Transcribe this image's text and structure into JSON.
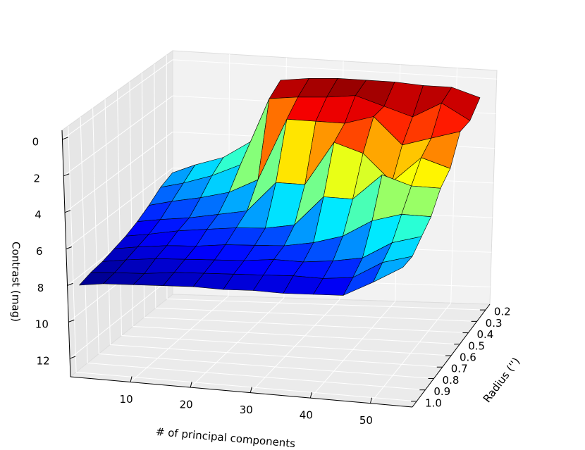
{
  "chart_data": {
    "type": "surface3d",
    "xlabel": "# of principal components",
    "ylabel": "Radius  ('')",
    "zlabel": "Contrast (mag)",
    "colormap": "jet",
    "x": [
      1,
      5,
      10,
      15,
      20,
      25,
      30,
      35,
      40,
      45,
      50,
      55
    ],
    "y": [
      0.2,
      0.3,
      0.4,
      0.5,
      0.6,
      0.7,
      0.8,
      0.9,
      {
        "value": 1.0,
        "label": "1.0"
      }
    ],
    "z": [
      [
        6.0,
        5.5,
        5.0,
        4.0,
        0.5,
        0.3,
        0.2,
        0.2,
        0.2,
        0.3,
        0.3,
        0.8
      ],
      [
        6.3,
        6.0,
        5.5,
        4.8,
        1.0,
        0.8,
        0.7,
        0.5,
        1.0,
        1.5,
        0.6,
        1.5
      ],
      [
        6.8,
        6.5,
        6.2,
        5.8,
        5.0,
        1.5,
        1.5,
        1.5,
        1.0,
        2.5,
        2.0,
        1.5
      ],
      [
        7.2,
        7.0,
        6.8,
        6.5,
        6.2,
        4.5,
        4.5,
        2.0,
        2.5,
        4.0,
        2.5,
        3.0
      ],
      [
        7.5,
        7.3,
        7.0,
        6.8,
        6.6,
        6.5,
        6.2,
        4.5,
        4.5,
        3.0,
        3.5,
        3.5
      ],
      [
        7.7,
        7.5,
        7.3,
        7.2,
        7.0,
        6.9,
        6.8,
        6.5,
        6.0,
        5.0,
        4.5,
        4.5
      ],
      [
        7.9,
        7.7,
        7.5,
        7.4,
        7.3,
        7.2,
        7.0,
        7.0,
        6.8,
        6.5,
        5.5,
        5.0
      ],
      [
        8.0,
        7.9,
        7.8,
        7.6,
        7.5,
        7.4,
        7.3,
        7.2,
        7.2,
        7.0,
        6.0,
        5.5
      ],
      [
        8.2,
        8.0,
        7.9,
        7.8,
        7.7,
        7.7,
        7.6,
        7.6,
        7.5,
        7.4,
        6.5,
        5.5
      ]
    ],
    "xlim": [
      0,
      57
    ],
    "ylim": [
      0.15,
      1.05
    ],
    "zlim": [
      -0.5,
      13
    ],
    "z_inverted": true,
    "xticks": [
      10,
      20,
      30,
      40,
      50
    ],
    "yticks": [
      0.2,
      0.3,
      0.4,
      0.5,
      0.6,
      0.7,
      0.8,
      0.9,
      {
        "value": 1.0,
        "label": "1.0"
      }
    ],
    "zticks": [
      0,
      2,
      4,
      6,
      8,
      10,
      12
    ],
    "grid": true
  }
}
